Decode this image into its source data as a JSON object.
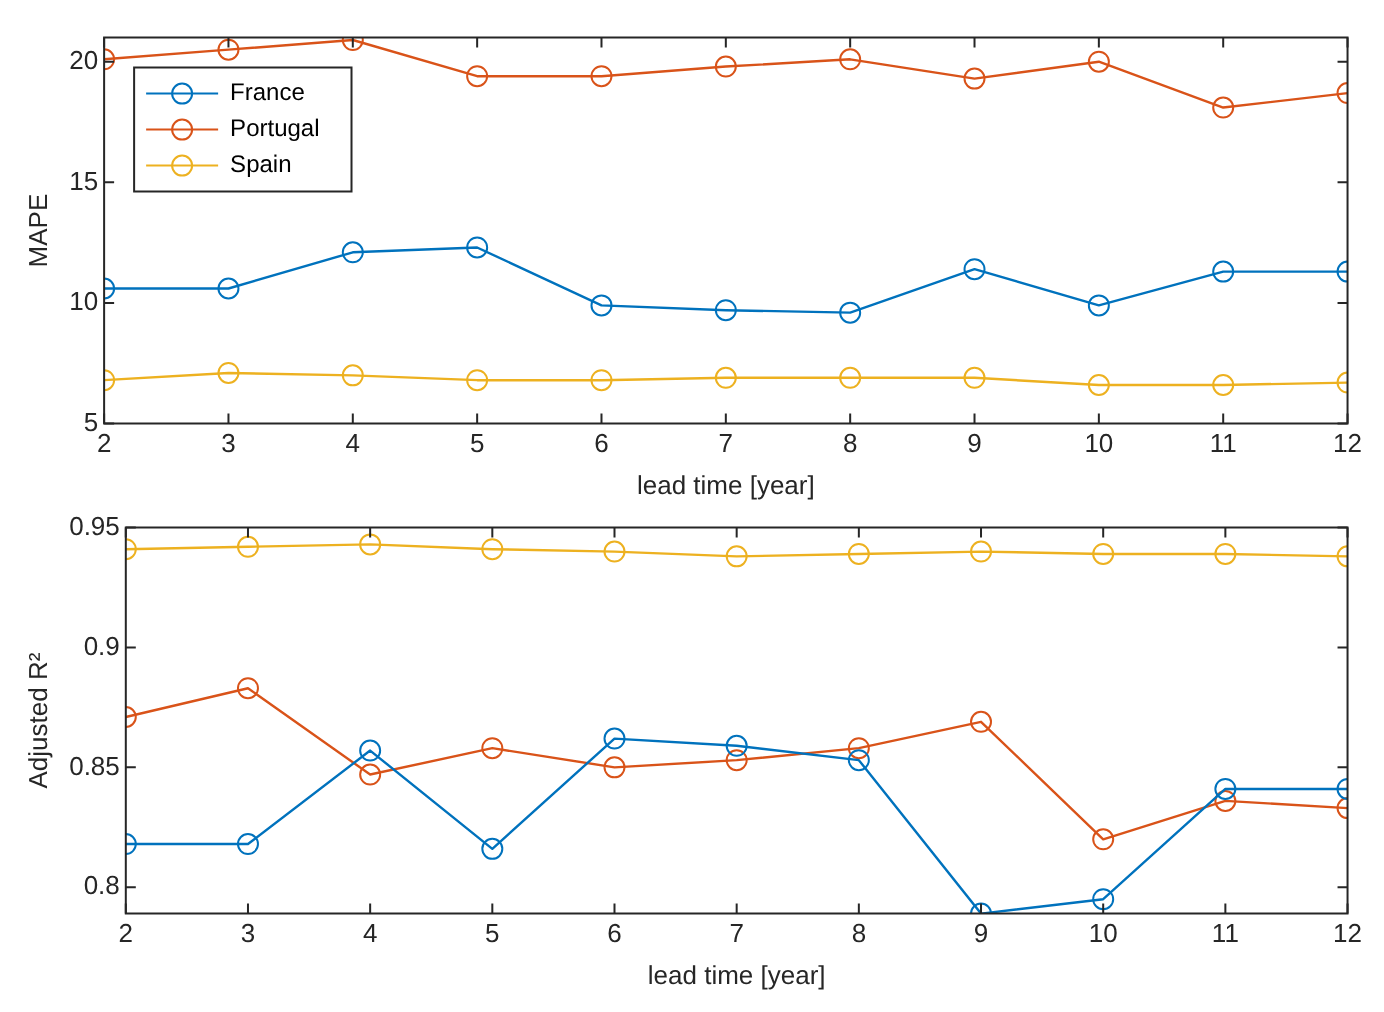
{
  "chart_data": [
    {
      "type": "line",
      "ylabel": "MAPE",
      "xlabel": "lead time [year]",
      "x": [
        2,
        3,
        4,
        5,
        6,
        7,
        8,
        9,
        10,
        11,
        12
      ],
      "xlim": [
        2,
        12
      ],
      "xticks": [
        2,
        3,
        4,
        5,
        6,
        7,
        8,
        9,
        10,
        11,
        12
      ],
      "ylim": [
        5,
        21
      ],
      "yticks": [
        5,
        10,
        15,
        20
      ],
      "grid": false,
      "legend": "top left",
      "marker": "circle",
      "line_style": "solid",
      "series": [
        {
          "name": "France",
          "color": "#0072bd",
          "values": [
            10.6,
            10.6,
            12.1,
            12.3,
            9.9,
            9.7,
            9.6,
            11.4,
            9.9,
            11.3,
            11.3
          ]
        },
        {
          "name": "Portugal",
          "color": "#d95319",
          "values": [
            20.1,
            20.5,
            20.9,
            19.4,
            19.4,
            19.8,
            20.1,
            19.3,
            20.0,
            18.1,
            18.7
          ]
        },
        {
          "name": "Spain",
          "color": "#edb120",
          "values": [
            6.8,
            7.1,
            7.0,
            6.8,
            6.8,
            6.9,
            6.9,
            6.9,
            6.6,
            6.6,
            6.7
          ]
        }
      ]
    },
    {
      "type": "line",
      "ylabel": "Adjusted R²",
      "xlabel": "lead time [year]",
      "x": [
        2,
        3,
        4,
        5,
        6,
        7,
        8,
        9,
        10,
        11,
        12
      ],
      "xlim": [
        2,
        12
      ],
      "xticks": [
        2,
        3,
        4,
        5,
        6,
        7,
        8,
        9,
        10,
        11,
        12
      ],
      "ylim": [
        0.789,
        0.95
      ],
      "yticks": [
        0.8,
        0.85,
        0.9,
        0.95
      ],
      "grid": false,
      "legend": false,
      "marker": "circle",
      "line_style": "solid",
      "series": [
        {
          "color": "#0072bd",
          "values": [
            0.818,
            0.818,
            0.857,
            0.816,
            0.862,
            0.859,
            0.853,
            0.789,
            0.795,
            0.841,
            0.841
          ]
        },
        {
          "color": "#d95319",
          "values": [
            0.871,
            0.883,
            0.847,
            0.858,
            0.85,
            0.853,
            0.858,
            0.869,
            0.82,
            0.836,
            0.833
          ]
        },
        {
          "color": "#edb120",
          "values": [
            0.941,
            0.942,
            0.943,
            0.941,
            0.94,
            0.938,
            0.939,
            0.94,
            0.939,
            0.939,
            0.938
          ]
        }
      ]
    }
  ]
}
